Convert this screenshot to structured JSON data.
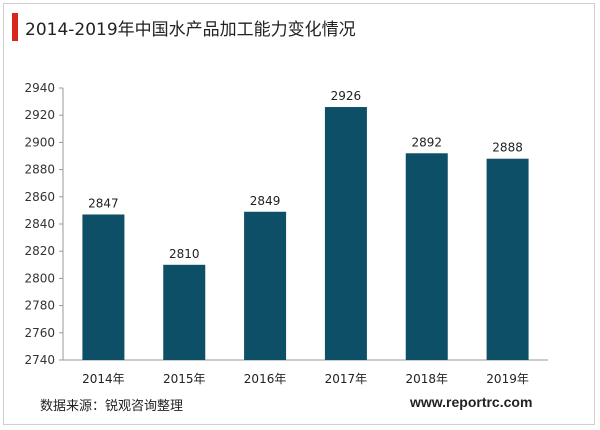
{
  "header": {
    "title": "2014-2019年中国水产品加工能力变化情况",
    "accent_color": "#d9261c"
  },
  "footer": {
    "source": "数据来源：锐观咨询整理",
    "website": "www.reportrc.com"
  },
  "chart_data": {
    "type": "bar",
    "title": "2014-2019年中国水产品加工能力变化情况",
    "xlabel": "",
    "ylabel": "",
    "categories": [
      "2014年",
      "2015年",
      "2016年",
      "2017年",
      "2018年",
      "2019年"
    ],
    "values": [
      2847,
      2810,
      2849,
      2926,
      2892,
      2888
    ],
    "ylim": [
      2740,
      2940
    ],
    "yticks": [
      2740,
      2760,
      2780,
      2800,
      2820,
      2840,
      2860,
      2880,
      2900,
      2920,
      2940
    ],
    "bar_color": "#0d4f66",
    "grid": false,
    "legend": "none"
  }
}
